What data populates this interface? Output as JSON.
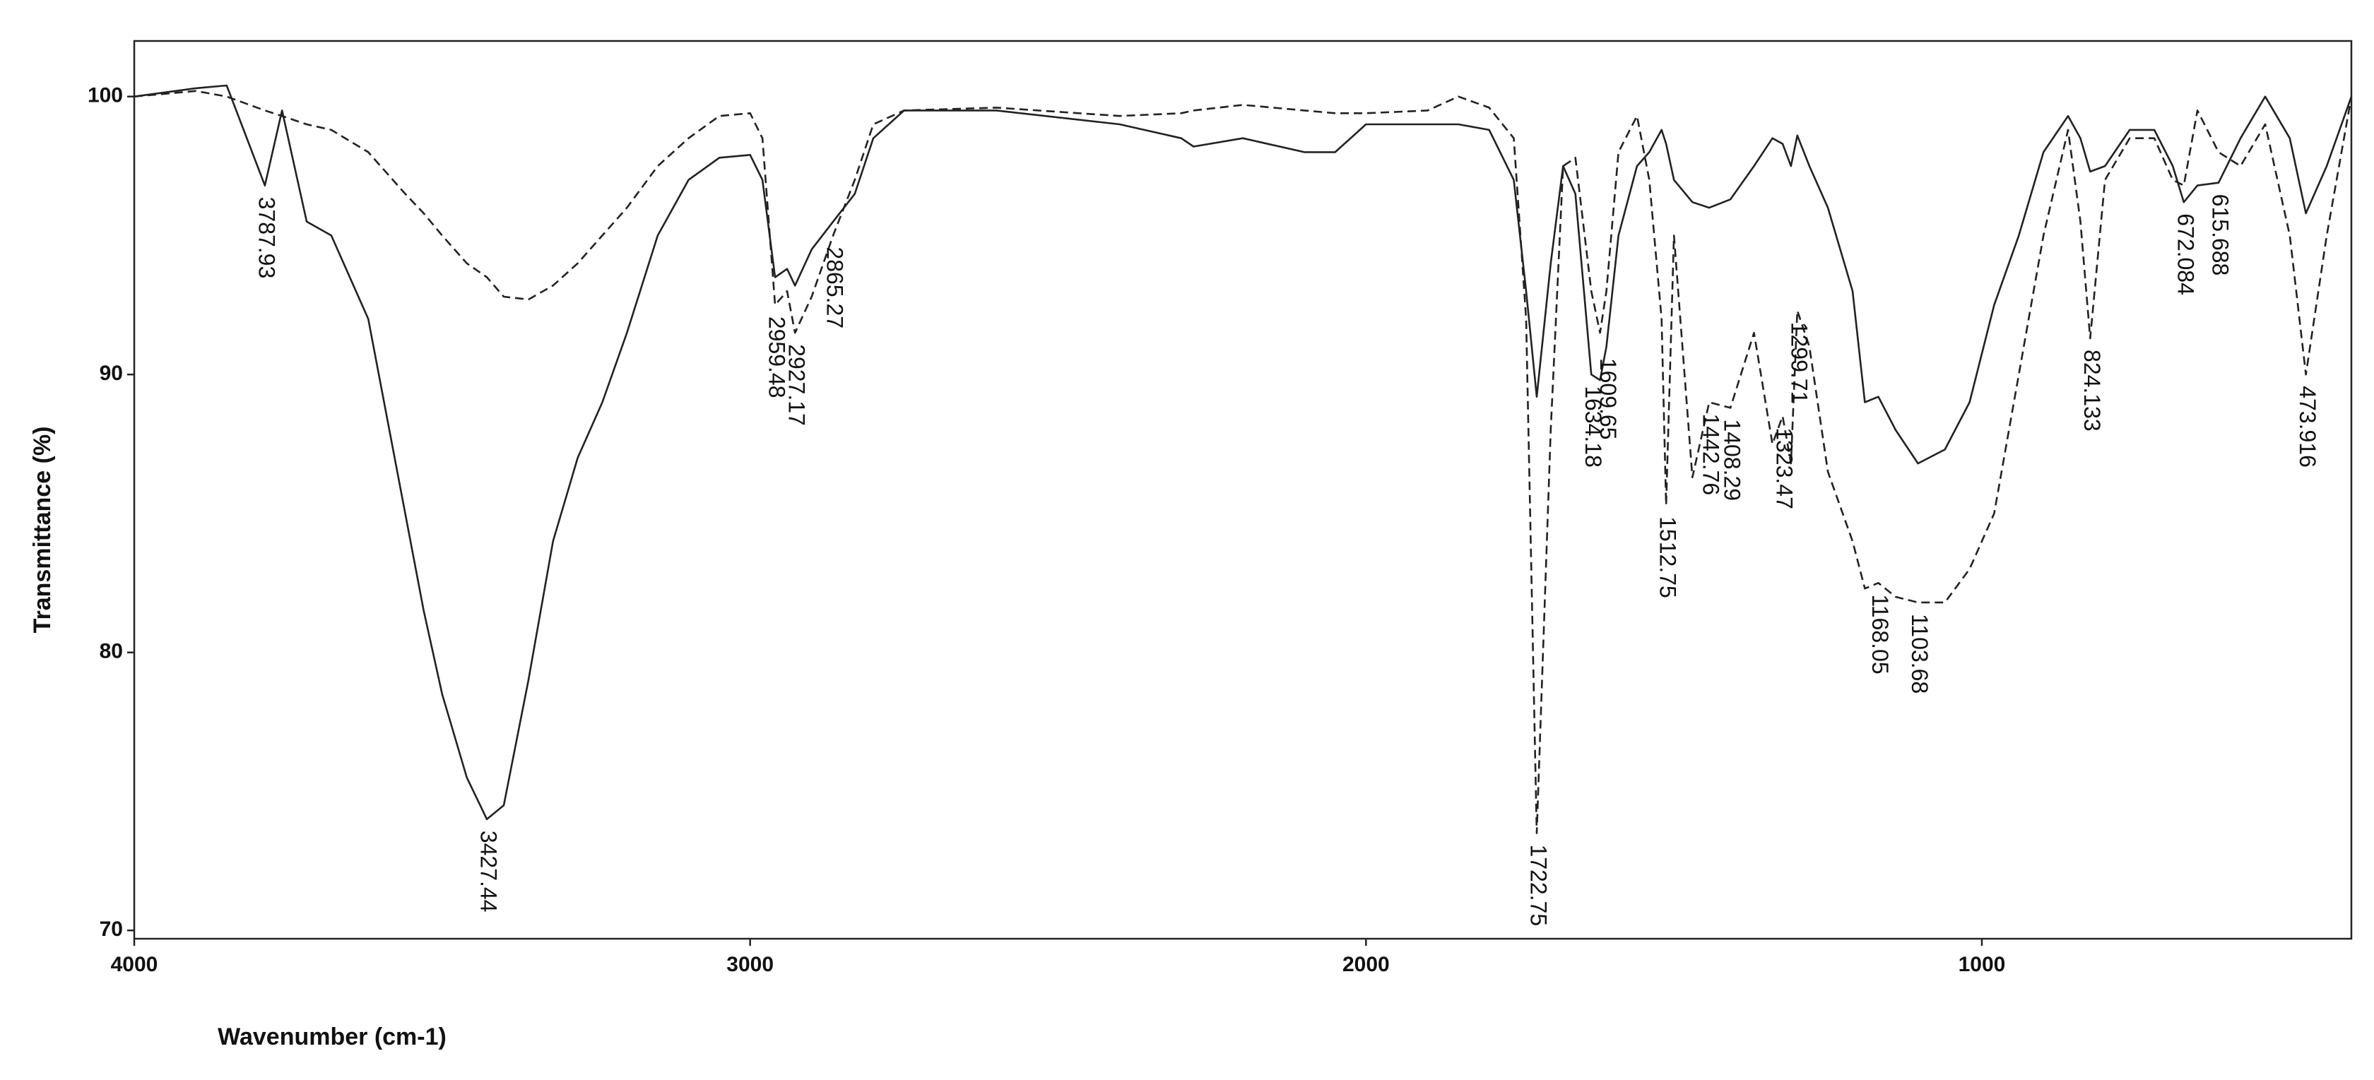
{
  "chart_data": {
    "type": "line",
    "x_label": "Wavenumber (cm-1)",
    "y_label": "Transmittance (%)",
    "x": [
      4000,
      3900,
      3850,
      3787.93,
      3760,
      3720,
      3680,
      3620,
      3560,
      3530,
      3500,
      3460,
      3427.44,
      3400,
      3360,
      3320,
      3280,
      3240,
      3200,
      3150,
      3100,
      3050,
      3000,
      2980,
      2959.48,
      2940,
      2927.17,
      2900,
      2865.27,
      2830,
      2800,
      2750,
      2600,
      2400,
      2300,
      2280,
      2200,
      2100,
      2050,
      2000,
      1900,
      1850,
      1800,
      1760,
      1740,
      1722.75,
      1700,
      1680,
      1660,
      1634.18,
      1620,
      1609.65,
      1590,
      1560,
      1540,
      1520,
      1512.75,
      1500,
      1470,
      1442.76,
      1408.29,
      1370,
      1340,
      1323.47,
      1310,
      1299.71,
      1280,
      1250,
      1210,
      1190,
      1168.05,
      1140,
      1103.68,
      1060,
      1020,
      980,
      940,
      900,
      860,
      840,
      824.133,
      800,
      760,
      720,
      690,
      672.084,
      650,
      615.688,
      580,
      540,
      500,
      473.916,
      440,
      400
    ],
    "series": [
      {
        "color": "#222222",
        "style": "solid",
        "values": [
          100,
          100.3,
          100.4,
          96.8,
          99.5,
          95.5,
          95,
          92,
          85,
          81.5,
          78.5,
          75.5,
          74,
          74.5,
          79,
          84,
          87,
          89,
          91.5,
          95,
          97,
          97.8,
          97.9,
          97,
          93.5,
          93.8,
          93.2,
          94.5,
          95.5,
          96.5,
          98.5,
          99.5,
          99.5,
          99,
          98.5,
          98.2,
          98.5,
          98,
          98,
          99,
          99,
          99,
          98.8,
          97,
          93,
          89.2,
          94,
          97.5,
          96.5,
          90,
          89.8,
          91,
          95,
          97.5,
          98,
          98.8,
          98.3,
          97,
          96.2,
          96,
          96.3,
          97.5,
          98.5,
          98.3,
          97.5,
          98.6,
          97.5,
          96,
          93,
          89,
          89.2,
          88,
          86.8,
          87.3,
          89,
          92.5,
          95,
          98,
          99.3,
          98.5,
          97.3,
          97.5,
          98.8,
          98.8,
          97.5,
          96.2,
          96.8,
          96.9,
          98.5,
          100,
          98.5,
          95.8,
          97.5,
          100
        ]
      },
      {
        "color": "#222222",
        "style": "dashed",
        "values": [
          100,
          100.2,
          100,
          99.5,
          99.3,
          99,
          98.8,
          98,
          96.5,
          95.8,
          95,
          94,
          93.5,
          92.8,
          92.7,
          93.2,
          94,
          95,
          96,
          97.5,
          98.5,
          99.3,
          99.4,
          98.5,
          92.5,
          93,
          91.5,
          92.8,
          95,
          97,
          99,
          99.5,
          99.6,
          99.3,
          99.4,
          99.5,
          99.7,
          99.5,
          99.4,
          99.4,
          99.5,
          100,
          99.6,
          98.5,
          92,
          73.5,
          88,
          97.5,
          97.8,
          93,
          91.5,
          93,
          98,
          99.3,
          97,
          92,
          85.3,
          95,
          86.3,
          89,
          88.8,
          91.5,
          87.5,
          88.5,
          86.8,
          92.3,
          91,
          86.5,
          84,
          82.3,
          82.5,
          82,
          81.8,
          81.8,
          83,
          85,
          90,
          95,
          98.8,
          95.5,
          91.3,
          97,
          98.5,
          98.5,
          97,
          96.8,
          99.5,
          98,
          97.5,
          99,
          95,
          90,
          95,
          100
        ]
      }
    ],
    "annotations": [
      "3787.93",
      "3427.44",
      "2959.48",
      "2927.17",
      "2865.27",
      "1722.75",
      "1634.18",
      "1609.65",
      "1512.75",
      "1442.76",
      "1408.29",
      "1323.47",
      "1299.71",
      "1168.05",
      "1103.68",
      "824.133",
      "672.084",
      "615.688",
      "473.916"
    ],
    "xlim": [
      4000,
      400
    ],
    "xticks": [
      4000,
      3000,
      2000,
      1000
    ],
    "ylim": [
      69.7,
      102
    ],
    "yticks": [
      70,
      80,
      90,
      100
    ]
  }
}
